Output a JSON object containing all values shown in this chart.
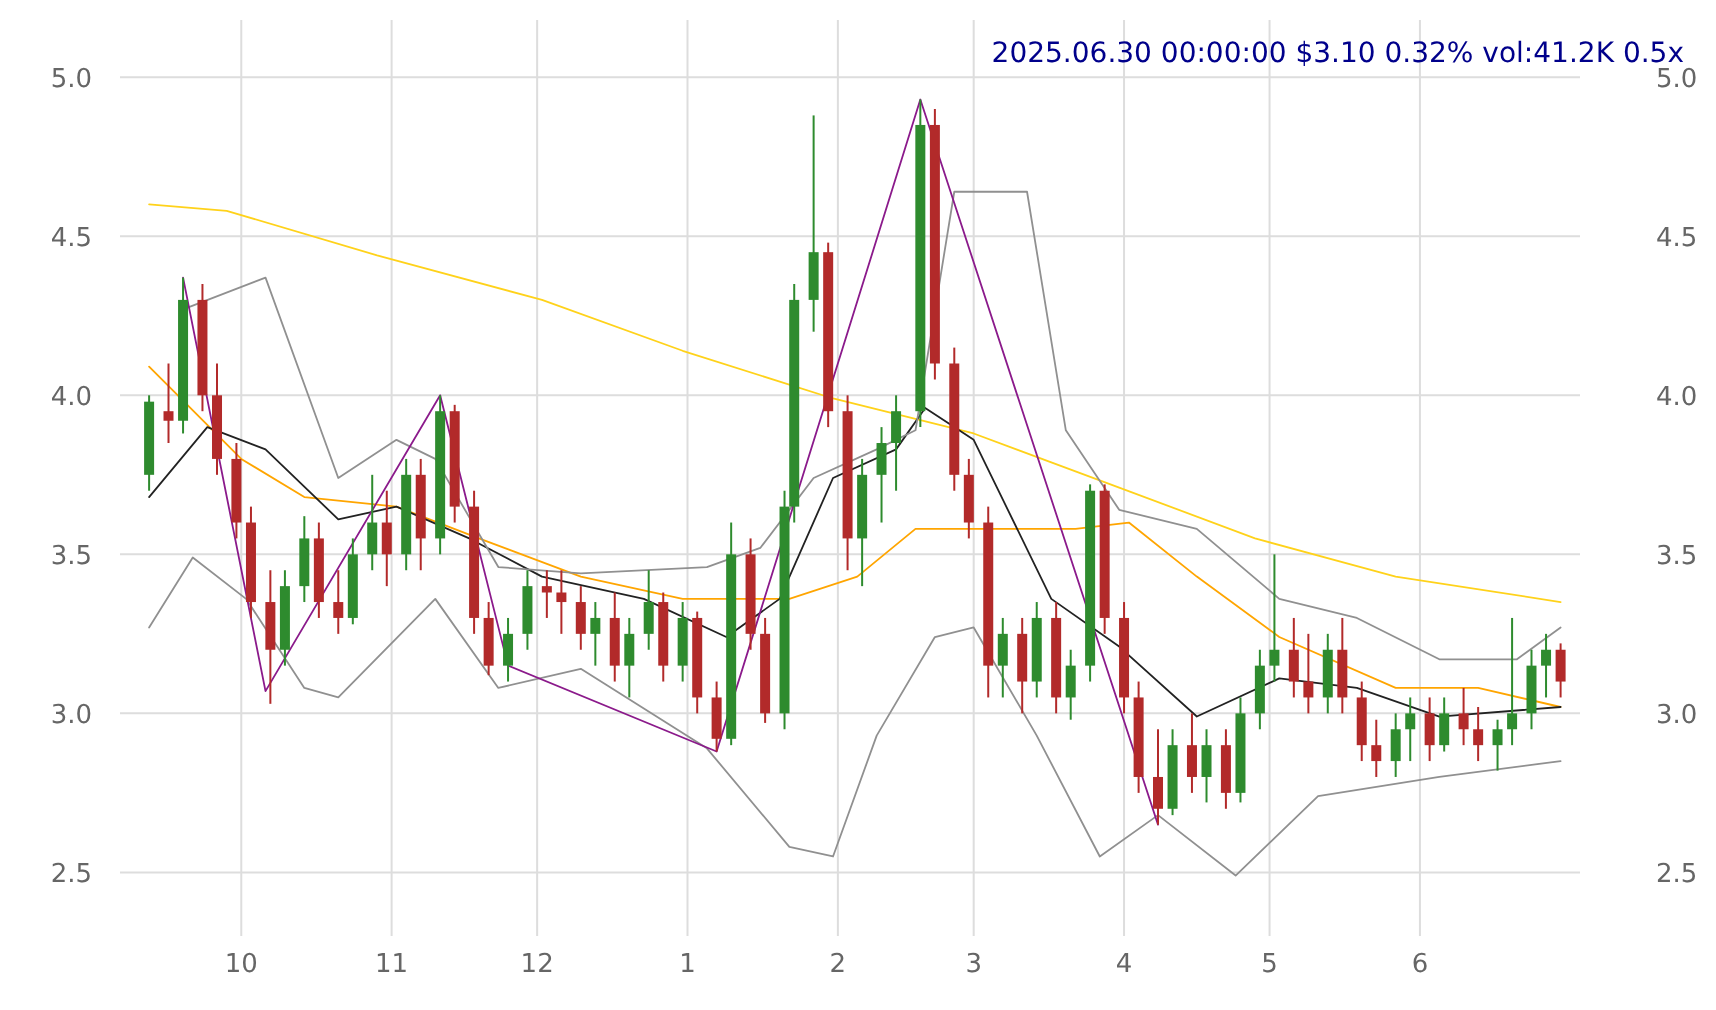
{
  "chart_data": {
    "type": "candlestick",
    "title": "2025.06.30 00:00:00 $3.10 0.32% vol:41.2K 0.5x",
    "xlim": [
      "2024-09-06",
      "2025-07-04"
    ],
    "xticks": [
      {
        "value": "2024-10-01",
        "label": "10"
      },
      {
        "value": "2024-11-01",
        "label": "11"
      },
      {
        "value": "2024-12-01",
        "label": "12"
      },
      {
        "value": "2025-01-01",
        "label": "1"
      },
      {
        "value": "2025-02-01",
        "label": "2"
      },
      {
        "value": "2025-03-01",
        "label": "3"
      },
      {
        "value": "2025-04-01",
        "label": "4"
      },
      {
        "value": "2025-05-01",
        "label": "5"
      },
      {
        "value": "2025-06-01",
        "label": "6"
      }
    ],
    "ylim": [
      2.3,
      5.18
    ],
    "yticks": [
      {
        "value": 2.5,
        "label": "2.5"
      },
      {
        "value": 3,
        "label": "3.0"
      },
      {
        "value": 3.5,
        "label": "3.5"
      },
      {
        "value": 4,
        "label": "4.0"
      },
      {
        "value": 4.5,
        "label": "4.5"
      },
      {
        "value": 5,
        "label": "5.0"
      }
    ],
    "y2lim": [
      2.3,
      5.18
    ],
    "y2ticks": [
      {
        "value": 2.5,
        "label": "2.5"
      },
      {
        "value": 3,
        "label": "3.0"
      },
      {
        "value": 3.5,
        "label": "3.5"
      },
      {
        "value": 4,
        "label": "4.0"
      },
      {
        "value": 4.5,
        "label": "4.5"
      },
      {
        "value": 5,
        "label": "5.0"
      }
    ],
    "grid": true,
    "series": [
      {
        "type": "line",
        "color": "#ffd21a",
        "x": [
          "2024-09-12",
          "2024-09-28",
          "2024-10-29",
          "2024-12-02",
          "2024-12-31",
          "2025-01-31",
          "2025-03-01",
          "2025-03-31",
          "2025-04-28",
          "2025-05-27",
          "2025-06-30"
        ],
        "values": [
          4.6,
          4.58,
          4.44,
          4.3,
          4.14,
          3.99,
          3.88,
          3.71,
          3.55,
          3.43,
          3.35
        ]
      },
      {
        "type": "line",
        "color": "#ffa500",
        "x": [
          "2024-09-12",
          "2024-10-01",
          "2024-10-14",
          "2024-11-02",
          "2024-11-19",
          "2024-12-10",
          "2024-12-31",
          "2025-01-22",
          "2025-02-05",
          "2025-02-17",
          "2025-03-01",
          "2025-03-22",
          "2025-04-02",
          "2025-04-16",
          "2025-05-03",
          "2025-05-27",
          "2025-06-13",
          "2025-06-30"
        ],
        "values": [
          4.09,
          3.8,
          3.68,
          3.65,
          3.55,
          3.43,
          3.36,
          3.36,
          3.43,
          3.58,
          3.58,
          3.58,
          3.6,
          3.43,
          3.24,
          3.08,
          3.08,
          3.02
        ]
      },
      {
        "type": "line",
        "color": "#222222",
        "x": [
          "2024-09-12",
          "2024-09-24",
          "2024-10-06",
          "2024-10-21",
          "2024-11-02",
          "2024-11-17",
          "2024-12-02",
          "2024-12-23",
          "2025-01-09",
          "2025-01-20",
          "2025-01-31",
          "2025-02-13",
          "2025-02-19",
          "2025-03-01",
          "2025-03-17",
          "2025-03-31",
          "2025-04-16",
          "2025-05-03",
          "2025-05-19",
          "2025-06-05",
          "2025-06-30"
        ],
        "values": [
          3.68,
          3.9,
          3.83,
          3.61,
          3.65,
          3.55,
          3.43,
          3.36,
          3.24,
          3.36,
          3.74,
          3.83,
          3.96,
          3.86,
          3.36,
          3.21,
          2.99,
          3.11,
          3.08,
          2.99,
          3.02
        ]
      },
      {
        "type": "line",
        "color": "#909090",
        "x": [
          "2024-09-19",
          "2024-10-06",
          "2024-10-21",
          "2024-11-02",
          "2024-11-10",
          "2024-11-23",
          "2024-12-10",
          "2025-01-05",
          "2025-01-16",
          "2025-01-27",
          "2025-02-09",
          "2025-02-17",
          "2025-02-25",
          "2025-03-12",
          "2025-03-20",
          "2025-03-31",
          "2025-04-16",
          "2025-05-03",
          "2025-05-19",
          "2025-06-05",
          "2025-06-21",
          "2025-06-30"
        ],
        "values": [
          4.27,
          4.37,
          3.74,
          3.86,
          3.8,
          3.46,
          3.44,
          3.46,
          3.52,
          3.74,
          3.83,
          3.89,
          4.64,
          4.64,
          3.89,
          3.64,
          3.58,
          3.36,
          3.3,
          3.17,
          3.17,
          3.27
        ]
      },
      {
        "type": "line",
        "color": "#909090",
        "x": [
          "2024-09-12",
          "2024-09-21",
          "2024-10-02",
          "2024-10-14",
          "2024-10-21",
          "2024-11-10",
          "2024-11-23",
          "2024-12-10",
          "2025-01-05",
          "2025-01-22",
          "2025-01-31",
          "2025-02-09",
          "2025-02-21",
          "2025-03-01",
          "2025-03-14",
          "2025-03-27",
          "2025-04-08",
          "2025-04-24",
          "2025-05-11",
          "2025-06-05",
          "2025-06-30"
        ],
        "values": [
          3.27,
          3.49,
          3.36,
          3.08,
          3.05,
          3.36,
          3.08,
          3.14,
          2.89,
          2.58,
          2.55,
          2.93,
          3.24,
          3.27,
          2.93,
          2.55,
          2.68,
          2.49,
          2.74,
          2.8,
          2.85
        ]
      },
      {
        "type": "line",
        "color": "#8b1a8b",
        "x": [
          "2024-09-19",
          "2024-10-06",
          "2024-11-11",
          "2024-11-25",
          "2025-01-07",
          "2025-02-18",
          "2025-04-08"
        ],
        "values": [
          4.37,
          3.07,
          4.0,
          3.15,
          2.88,
          4.93,
          2.65
        ]
      },
      {
        "x": [
          "2024-09-12",
          "2024-09-16",
          "2024-09-19",
          "2024-09-23",
          "2024-09-26",
          "2024-09-30",
          "2024-10-03",
          "2024-10-07",
          "2024-10-10",
          "2024-10-14",
          "2024-10-17",
          "2024-10-21",
          "2024-10-24",
          "2024-10-28",
          "2024-10-31",
          "2024-11-04",
          "2024-11-07",
          "2024-11-11",
          "2024-11-14",
          "2024-11-18",
          "2024-11-21",
          "2024-11-25",
          "2024-11-29",
          "2024-12-03",
          "2024-12-06",
          "2024-12-10",
          "2024-12-13",
          "2024-12-17",
          "2024-12-20",
          "2024-12-24",
          "2024-12-27",
          "2024-12-31",
          "2025-01-03",
          "2025-01-07",
          "2025-01-10",
          "2025-01-14",
          "2025-01-17",
          "2025-01-21",
          "2025-01-23",
          "2025-01-27",
          "2025-01-30",
          "2025-02-03",
          "2025-02-06",
          "2025-02-10",
          "2025-02-13",
          "2025-02-18",
          "2025-02-21",
          "2025-02-25",
          "2025-02-28",
          "2025-03-04",
          "2025-03-07",
          "2025-03-11",
          "2025-03-14",
          "2025-03-18",
          "2025-03-21",
          "2025-03-25",
          "2025-03-28",
          "2025-04-01",
          "2025-04-04",
          "2025-04-08",
          "2025-04-11",
          "2025-04-15",
          "2025-04-18",
          "2025-04-22",
          "2025-04-25",
          "2025-04-29",
          "2025-05-02",
          "2025-05-06",
          "2025-05-09",
          "2025-05-13",
          "2025-05-16",
          "2025-05-20",
          "2025-05-23",
          "2025-05-27",
          "2025-05-30",
          "2025-06-03",
          "2025-06-06",
          "2025-06-10",
          "2025-06-13",
          "2025-06-17",
          "2025-06-20",
          "2025-06-24",
          "2025-06-27",
          "2025-06-30"
        ],
        "ohlc": [
          [
            3.75,
            4.0,
            3.7,
            3.98
          ],
          [
            3.95,
            4.1,
            3.85,
            3.92
          ],
          [
            3.92,
            4.37,
            3.88,
            4.3
          ],
          [
            4.3,
            4.35,
            3.95,
            4.0
          ],
          [
            4.0,
            4.1,
            3.75,
            3.8
          ],
          [
            3.8,
            3.85,
            3.55,
            3.6
          ],
          [
            3.6,
            3.65,
            3.3,
            3.35
          ],
          [
            3.35,
            3.45,
            3.03,
            3.2
          ],
          [
            3.2,
            3.45,
            3.15,
            3.4
          ],
          [
            3.4,
            3.62,
            3.35,
            3.55
          ],
          [
            3.55,
            3.6,
            3.3,
            3.35
          ],
          [
            3.35,
            3.45,
            3.25,
            3.3
          ],
          [
            3.3,
            3.55,
            3.28,
            3.5
          ],
          [
            3.5,
            3.75,
            3.45,
            3.6
          ],
          [
            3.6,
            3.7,
            3.4,
            3.5
          ],
          [
            3.5,
            3.8,
            3.45,
            3.75
          ],
          [
            3.75,
            3.8,
            3.45,
            3.55
          ],
          [
            3.55,
            4.0,
            3.5,
            3.95
          ],
          [
            3.95,
            3.97,
            3.6,
            3.65
          ],
          [
            3.65,
            3.7,
            3.25,
            3.3
          ],
          [
            3.3,
            3.35,
            3.12,
            3.15
          ],
          [
            3.15,
            3.3,
            3.1,
            3.25
          ],
          [
            3.25,
            3.45,
            3.2,
            3.4
          ],
          [
            3.4,
            3.45,
            3.3,
            3.38
          ],
          [
            3.38,
            3.45,
            3.25,
            3.35
          ],
          [
            3.35,
            3.4,
            3.2,
            3.25
          ],
          [
            3.25,
            3.35,
            3.15,
            3.3
          ],
          [
            3.3,
            3.38,
            3.1,
            3.15
          ],
          [
            3.15,
            3.3,
            3.05,
            3.25
          ],
          [
            3.25,
            3.45,
            3.2,
            3.35
          ],
          [
            3.35,
            3.38,
            3.1,
            3.15
          ],
          [
            3.15,
            3.35,
            3.1,
            3.3
          ],
          [
            3.3,
            3.32,
            3.0,
            3.05
          ],
          [
            3.05,
            3.1,
            2.88,
            2.92
          ],
          [
            2.92,
            3.6,
            2.9,
            3.5
          ],
          [
            3.5,
            3.55,
            3.2,
            3.25
          ],
          [
            3.25,
            3.3,
            2.97,
            3.0
          ],
          [
            3.0,
            3.7,
            2.95,
            3.65
          ],
          [
            3.65,
            4.35,
            3.6,
            4.3
          ],
          [
            4.3,
            4.88,
            4.2,
            4.45
          ],
          [
            4.45,
            4.48,
            3.9,
            3.95
          ],
          [
            3.95,
            4.0,
            3.45,
            3.55
          ],
          [
            3.55,
            3.8,
            3.4,
            3.75
          ],
          [
            3.75,
            3.9,
            3.6,
            3.85
          ],
          [
            3.85,
            4.0,
            3.7,
            3.95
          ],
          [
            3.95,
            4.93,
            3.9,
            4.85
          ],
          [
            4.85,
            4.9,
            4.05,
            4.1
          ],
          [
            4.1,
            4.15,
            3.7,
            3.75
          ],
          [
            3.75,
            3.8,
            3.55,
            3.6
          ],
          [
            3.6,
            3.65,
            3.05,
            3.15
          ],
          [
            3.15,
            3.3,
            3.05,
            3.25
          ],
          [
            3.25,
            3.3,
            3.0,
            3.1
          ],
          [
            3.1,
            3.35,
            3.05,
            3.3
          ],
          [
            3.3,
            3.35,
            3.0,
            3.05
          ],
          [
            3.05,
            3.2,
            2.98,
            3.15
          ],
          [
            3.15,
            3.72,
            3.1,
            3.7
          ],
          [
            3.7,
            3.72,
            3.25,
            3.3
          ],
          [
            3.3,
            3.35,
            3.0,
            3.05
          ],
          [
            3.05,
            3.1,
            2.75,
            2.8
          ],
          [
            2.8,
            2.95,
            2.65,
            2.7
          ],
          [
            2.7,
            2.95,
            2.68,
            2.9
          ],
          [
            2.9,
            3.0,
            2.75,
            2.8
          ],
          [
            2.8,
            2.95,
            2.72,
            2.9
          ],
          [
            2.9,
            2.95,
            2.7,
            2.75
          ],
          [
            2.75,
            3.05,
            2.72,
            3.0
          ],
          [
            3.0,
            3.2,
            2.95,
            3.15
          ],
          [
            3.15,
            3.5,
            3.1,
            3.2
          ],
          [
            3.2,
            3.3,
            3.05,
            3.1
          ],
          [
            3.1,
            3.25,
            3.0,
            3.05
          ],
          [
            3.05,
            3.25,
            3.0,
            3.2
          ],
          [
            3.2,
            3.3,
            3.0,
            3.05
          ],
          [
            3.05,
            3.1,
            2.85,
            2.9
          ],
          [
            2.9,
            2.98,
            2.8,
            2.85
          ],
          [
            2.85,
            3.0,
            2.8,
            2.95
          ],
          [
            2.95,
            3.05,
            2.85,
            3.0
          ],
          [
            3.0,
            3.05,
            2.85,
            2.9
          ],
          [
            2.9,
            3.05,
            2.88,
            3.0
          ],
          [
            3.0,
            3.08,
            2.9,
            2.95
          ],
          [
            2.95,
            3.02,
            2.85,
            2.9
          ],
          [
            2.9,
            2.98,
            2.82,
            2.95
          ],
          [
            2.95,
            3.3,
            2.9,
            3.0
          ],
          [
            3.0,
            3.2,
            2.95,
            3.15
          ],
          [
            3.15,
            3.25,
            3.05,
            3.2
          ],
          [
            3.2,
            3.22,
            3.05,
            3.1
          ]
        ],
        "colors": [
          "#2e8b2e",
          "#b22a2a",
          "#2e8b2e",
          "#b22a2a",
          "#b22a2a",
          "#b22a2a",
          "#b22a2a",
          "#b22a2a",
          "#2e8b2e",
          "#2e8b2e",
          "#b22a2a",
          "#b22a2a",
          "#2e8b2e",
          "#2e8b2e",
          "#b22a2a",
          "#2e8b2e",
          "#b22a2a",
          "#2e8b2e",
          "#b22a2a",
          "#b22a2a",
          "#b22a2a",
          "#2e8b2e",
          "#2e8b2e",
          "#b22a2a",
          "#b22a2a",
          "#b22a2a",
          "#2e8b2e",
          "#b22a2a",
          "#2e8b2e",
          "#2e8b2e",
          "#b22a2a",
          "#2e8b2e",
          "#b22a2a",
          "#b22a2a",
          "#2e8b2e",
          "#b22a2a",
          "#b22a2a",
          "#2e8b2e",
          "#2e8b2e",
          "#2e8b2e",
          "#b22a2a",
          "#b22a2a",
          "#2e8b2e",
          "#2e8b2e",
          "#2e8b2e",
          "#2e8b2e",
          "#b22a2a",
          "#b22a2a",
          "#b22a2a",
          "#b22a2a",
          "#2e8b2e",
          "#b22a2a",
          "#2e8b2e",
          "#b22a2a",
          "#2e8b2e",
          "#2e8b2e",
          "#b22a2a",
          "#b22a2a",
          "#b22a2a",
          "#b22a2a",
          "#2e8b2e",
          "#b22a2a",
          "#2e8b2e",
          "#b22a2a",
          "#2e8b2e",
          "#2e8b2e",
          "#2e8b2e",
          "#b22a2a",
          "#b22a2a",
          "#2e8b2e",
          "#b22a2a",
          "#b22a2a",
          "#b22a2a",
          "#2e8b2e",
          "#2e8b2e",
          "#b22a2a",
          "#2e8b2e",
          "#b22a2a",
          "#b22a2a",
          "#2e8b2e",
          "#2e8b2e",
          "#2e8b2e",
          "#2e8b2e",
          "#b22a2a"
        ]
      }
    ]
  }
}
